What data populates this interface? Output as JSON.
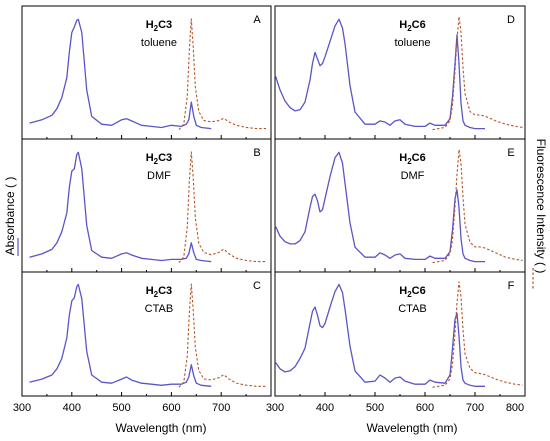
{
  "figure": {
    "y_label_left": "Absorbance (",
    "y_label_right": "Fluorescence Intensity (",
    "x_label": "Wavelength (nm)",
    "colors": {
      "absorbance": "#5a55c8",
      "fluorescence": "#b5562a",
      "frame": "#000000"
    }
  },
  "chart_data": [
    {
      "type": "line",
      "panel": "A",
      "compound_main": "H",
      "compound_sub": "2",
      "compound_rest": "C3",
      "solvent": "toluene",
      "xlim": [
        300,
        800
      ],
      "xticks": [
        300,
        400,
        500,
        600,
        700
      ],
      "series": [
        {
          "kind": "absorbance",
          "x": [
            315,
            340,
            360,
            370,
            380,
            390,
            395,
            400,
            405,
            410,
            413,
            420,
            430,
            440,
            460,
            480,
            500,
            510,
            520,
            540,
            560,
            580,
            600,
            620,
            630,
            635,
            640,
            645,
            650,
            660,
            680
          ],
          "y": [
            0.06,
            0.09,
            0.13,
            0.19,
            0.29,
            0.47,
            0.7,
            0.88,
            0.93,
            0.99,
            1.0,
            0.88,
            0.36,
            0.12,
            0.05,
            0.04,
            0.09,
            0.1,
            0.08,
            0.04,
            0.03,
            0.02,
            0.04,
            0.03,
            0.05,
            0.09,
            0.25,
            0.12,
            0.04,
            0.02,
            0.01
          ]
        },
        {
          "kind": "fluorescence",
          "x": [
            615,
            625,
            632,
            636,
            640,
            644,
            648,
            655,
            665,
            680,
            695,
            705,
            715,
            730,
            750,
            770,
            790
          ],
          "y": [
            0.0,
            0.05,
            0.3,
            0.7,
            0.98,
            0.72,
            0.38,
            0.16,
            0.08,
            0.07,
            0.08,
            0.1,
            0.07,
            0.04,
            0.02,
            0.01,
            0.01
          ]
        }
      ]
    },
    {
      "type": "line",
      "panel": "B",
      "compound_main": "H",
      "compound_sub": "2",
      "compound_rest": "C3",
      "solvent": "DMF",
      "xlim": [
        300,
        800
      ],
      "xticks": [
        300,
        400,
        500,
        600,
        700
      ],
      "series": [
        {
          "kind": "absorbance",
          "x": [
            315,
            340,
            360,
            370,
            380,
            390,
            395,
            400,
            405,
            410,
            413,
            420,
            430,
            440,
            460,
            480,
            500,
            510,
            520,
            540,
            560,
            580,
            600,
            620,
            630,
            635,
            640,
            645,
            650,
            660,
            680
          ],
          "y": [
            0.05,
            0.08,
            0.12,
            0.18,
            0.28,
            0.45,
            0.68,
            0.83,
            0.85,
            0.98,
            1.0,
            0.85,
            0.34,
            0.11,
            0.05,
            0.04,
            0.08,
            0.09,
            0.07,
            0.04,
            0.03,
            0.02,
            0.03,
            0.03,
            0.04,
            0.08,
            0.18,
            0.09,
            0.03,
            0.02,
            0.01
          ]
        },
        {
          "kind": "fluorescence",
          "x": [
            615,
            625,
            632,
            636,
            640,
            644,
            648,
            655,
            665,
            680,
            695,
            705,
            715,
            730,
            750,
            770,
            790
          ],
          "y": [
            0.0,
            0.05,
            0.32,
            0.72,
            0.98,
            0.74,
            0.4,
            0.17,
            0.09,
            0.07,
            0.09,
            0.12,
            0.08,
            0.04,
            0.02,
            0.01,
            0.01
          ]
        }
      ]
    },
    {
      "type": "line",
      "panel": "C",
      "compound_main": "H",
      "compound_sub": "2",
      "compound_rest": "C3",
      "solvent": "CTAB",
      "xlim": [
        300,
        800
      ],
      "xticks": [
        300,
        400,
        500,
        600,
        700
      ],
      "series": [
        {
          "kind": "absorbance",
          "x": [
            315,
            340,
            360,
            370,
            380,
            390,
            395,
            400,
            405,
            410,
            413,
            420,
            430,
            440,
            460,
            480,
            500,
            510,
            520,
            540,
            560,
            580,
            600,
            620,
            630,
            635,
            640,
            645,
            650,
            660,
            680
          ],
          "y": [
            0.05,
            0.08,
            0.12,
            0.18,
            0.28,
            0.48,
            0.7,
            0.84,
            0.87,
            0.98,
            1.0,
            0.86,
            0.35,
            0.12,
            0.05,
            0.04,
            0.08,
            0.1,
            0.07,
            0.04,
            0.03,
            0.02,
            0.03,
            0.03,
            0.05,
            0.1,
            0.22,
            0.11,
            0.04,
            0.02,
            0.01
          ]
        },
        {
          "kind": "fluorescence",
          "x": [
            615,
            625,
            632,
            636,
            640,
            644,
            648,
            655,
            665,
            680,
            695,
            705,
            715,
            730,
            750,
            770,
            790
          ],
          "y": [
            0.0,
            0.05,
            0.3,
            0.7,
            0.98,
            0.72,
            0.38,
            0.16,
            0.08,
            0.07,
            0.09,
            0.12,
            0.08,
            0.04,
            0.02,
            0.01,
            0.01
          ]
        }
      ]
    },
    {
      "type": "line",
      "panel": "D",
      "compound_main": "H",
      "compound_sub": "2",
      "compound_rest": "C6",
      "solvent": "toluene",
      "xlim": [
        300,
        800
      ],
      "xticks": [
        300,
        400,
        500,
        600,
        700,
        800
      ],
      "series": [
        {
          "kind": "absorbance",
          "x": [
            300,
            310,
            320,
            330,
            340,
            350,
            360,
            370,
            375,
            380,
            385,
            390,
            395,
            400,
            410,
            420,
            428,
            435,
            440,
            450,
            460,
            480,
            500,
            510,
            520,
            530,
            540,
            550,
            560,
            580,
            600,
            610,
            620,
            640,
            650,
            655,
            660,
            664,
            668,
            672,
            676,
            680,
            690,
            700,
            720
          ],
          "y": [
            0.5,
            0.36,
            0.26,
            0.2,
            0.17,
            0.18,
            0.25,
            0.45,
            0.6,
            0.7,
            0.64,
            0.58,
            0.6,
            0.66,
            0.8,
            0.94,
            1.0,
            0.92,
            0.78,
            0.4,
            0.16,
            0.05,
            0.05,
            0.08,
            0.07,
            0.04,
            0.08,
            0.09,
            0.05,
            0.03,
            0.03,
            0.06,
            0.04,
            0.04,
            0.1,
            0.3,
            0.6,
            0.86,
            0.6,
            0.24,
            0.08,
            0.04,
            0.02,
            0.01,
            0.01
          ]
        },
        {
          "kind": "fluorescence",
          "x": [
            615,
            640,
            650,
            655,
            660,
            664,
            668,
            672,
            676,
            680,
            690,
            700,
            710,
            720,
            740,
            760,
            780,
            795
          ],
          "y": [
            0.0,
            0.02,
            0.08,
            0.22,
            0.52,
            0.8,
            1.0,
            0.86,
            0.55,
            0.32,
            0.16,
            0.13,
            0.13,
            0.12,
            0.08,
            0.05,
            0.03,
            0.02
          ]
        }
      ]
    },
    {
      "type": "line",
      "panel": "E",
      "compound_main": "H",
      "compound_sub": "2",
      "compound_rest": "C6",
      "solvent": "DMF",
      "xlim": [
        300,
        800
      ],
      "xticks": [
        300,
        400,
        500,
        600,
        700,
        800
      ],
      "series": [
        {
          "kind": "absorbance",
          "x": [
            300,
            310,
            320,
            330,
            340,
            350,
            360,
            370,
            375,
            380,
            385,
            390,
            395,
            400,
            410,
            420,
            428,
            435,
            440,
            450,
            460,
            480,
            500,
            510,
            520,
            530,
            540,
            550,
            560,
            580,
            600,
            610,
            620,
            640,
            650,
            655,
            660,
            664,
            668,
            672,
            676,
            680,
            690,
            700,
            720
          ],
          "y": [
            0.34,
            0.24,
            0.19,
            0.17,
            0.17,
            0.2,
            0.28,
            0.5,
            0.6,
            0.62,
            0.56,
            0.46,
            0.48,
            0.58,
            0.78,
            0.95,
            1.0,
            0.9,
            0.72,
            0.36,
            0.14,
            0.05,
            0.05,
            0.09,
            0.07,
            0.04,
            0.07,
            0.08,
            0.04,
            0.03,
            0.03,
            0.06,
            0.04,
            0.04,
            0.1,
            0.3,
            0.58,
            0.66,
            0.5,
            0.22,
            0.08,
            0.04,
            0.02,
            0.01,
            0.01
          ]
        },
        {
          "kind": "fluorescence",
          "x": [
            615,
            640,
            650,
            655,
            660,
            664,
            668,
            672,
            676,
            680,
            690,
            700,
            710,
            720,
            740,
            760,
            780,
            795
          ],
          "y": [
            0.0,
            0.02,
            0.08,
            0.2,
            0.5,
            0.78,
            1.0,
            0.88,
            0.58,
            0.34,
            0.18,
            0.14,
            0.14,
            0.13,
            0.09,
            0.05,
            0.03,
            0.02
          ]
        }
      ]
    },
    {
      "type": "line",
      "panel": "F",
      "compound_main": "H",
      "compound_sub": "2",
      "compound_rest": "C6",
      "solvent": "CTAB",
      "xlim": [
        300,
        800
      ],
      "xticks": [
        300,
        400,
        500,
        600,
        700,
        800
      ],
      "series": [
        {
          "kind": "absorbance",
          "x": [
            300,
            310,
            320,
            330,
            340,
            350,
            360,
            370,
            375,
            380,
            385,
            390,
            395,
            400,
            410,
            420,
            428,
            435,
            440,
            450,
            460,
            480,
            500,
            510,
            520,
            530,
            540,
            550,
            560,
            580,
            600,
            610,
            620,
            640,
            650,
            655,
            660,
            664,
            668,
            672,
            676,
            680,
            690,
            700,
            720
          ],
          "y": [
            0.25,
            0.18,
            0.15,
            0.16,
            0.2,
            0.28,
            0.38,
            0.62,
            0.74,
            0.78,
            0.7,
            0.6,
            0.58,
            0.62,
            0.78,
            0.93,
            1.0,
            0.92,
            0.76,
            0.4,
            0.16,
            0.05,
            0.06,
            0.12,
            0.09,
            0.05,
            0.09,
            0.1,
            0.06,
            0.03,
            0.03,
            0.07,
            0.05,
            0.04,
            0.12,
            0.38,
            0.66,
            0.72,
            0.5,
            0.2,
            0.07,
            0.04,
            0.02,
            0.01,
            0.01
          ]
        },
        {
          "kind": "fluorescence",
          "x": [
            615,
            640,
            650,
            655,
            660,
            664,
            668,
            672,
            676,
            680,
            690,
            700,
            710,
            720,
            740,
            760,
            780,
            795
          ],
          "y": [
            0.0,
            0.02,
            0.08,
            0.22,
            0.52,
            0.8,
            1.0,
            0.86,
            0.55,
            0.32,
            0.18,
            0.14,
            0.13,
            0.12,
            0.08,
            0.05,
            0.03,
            0.02
          ]
        }
      ]
    }
  ]
}
